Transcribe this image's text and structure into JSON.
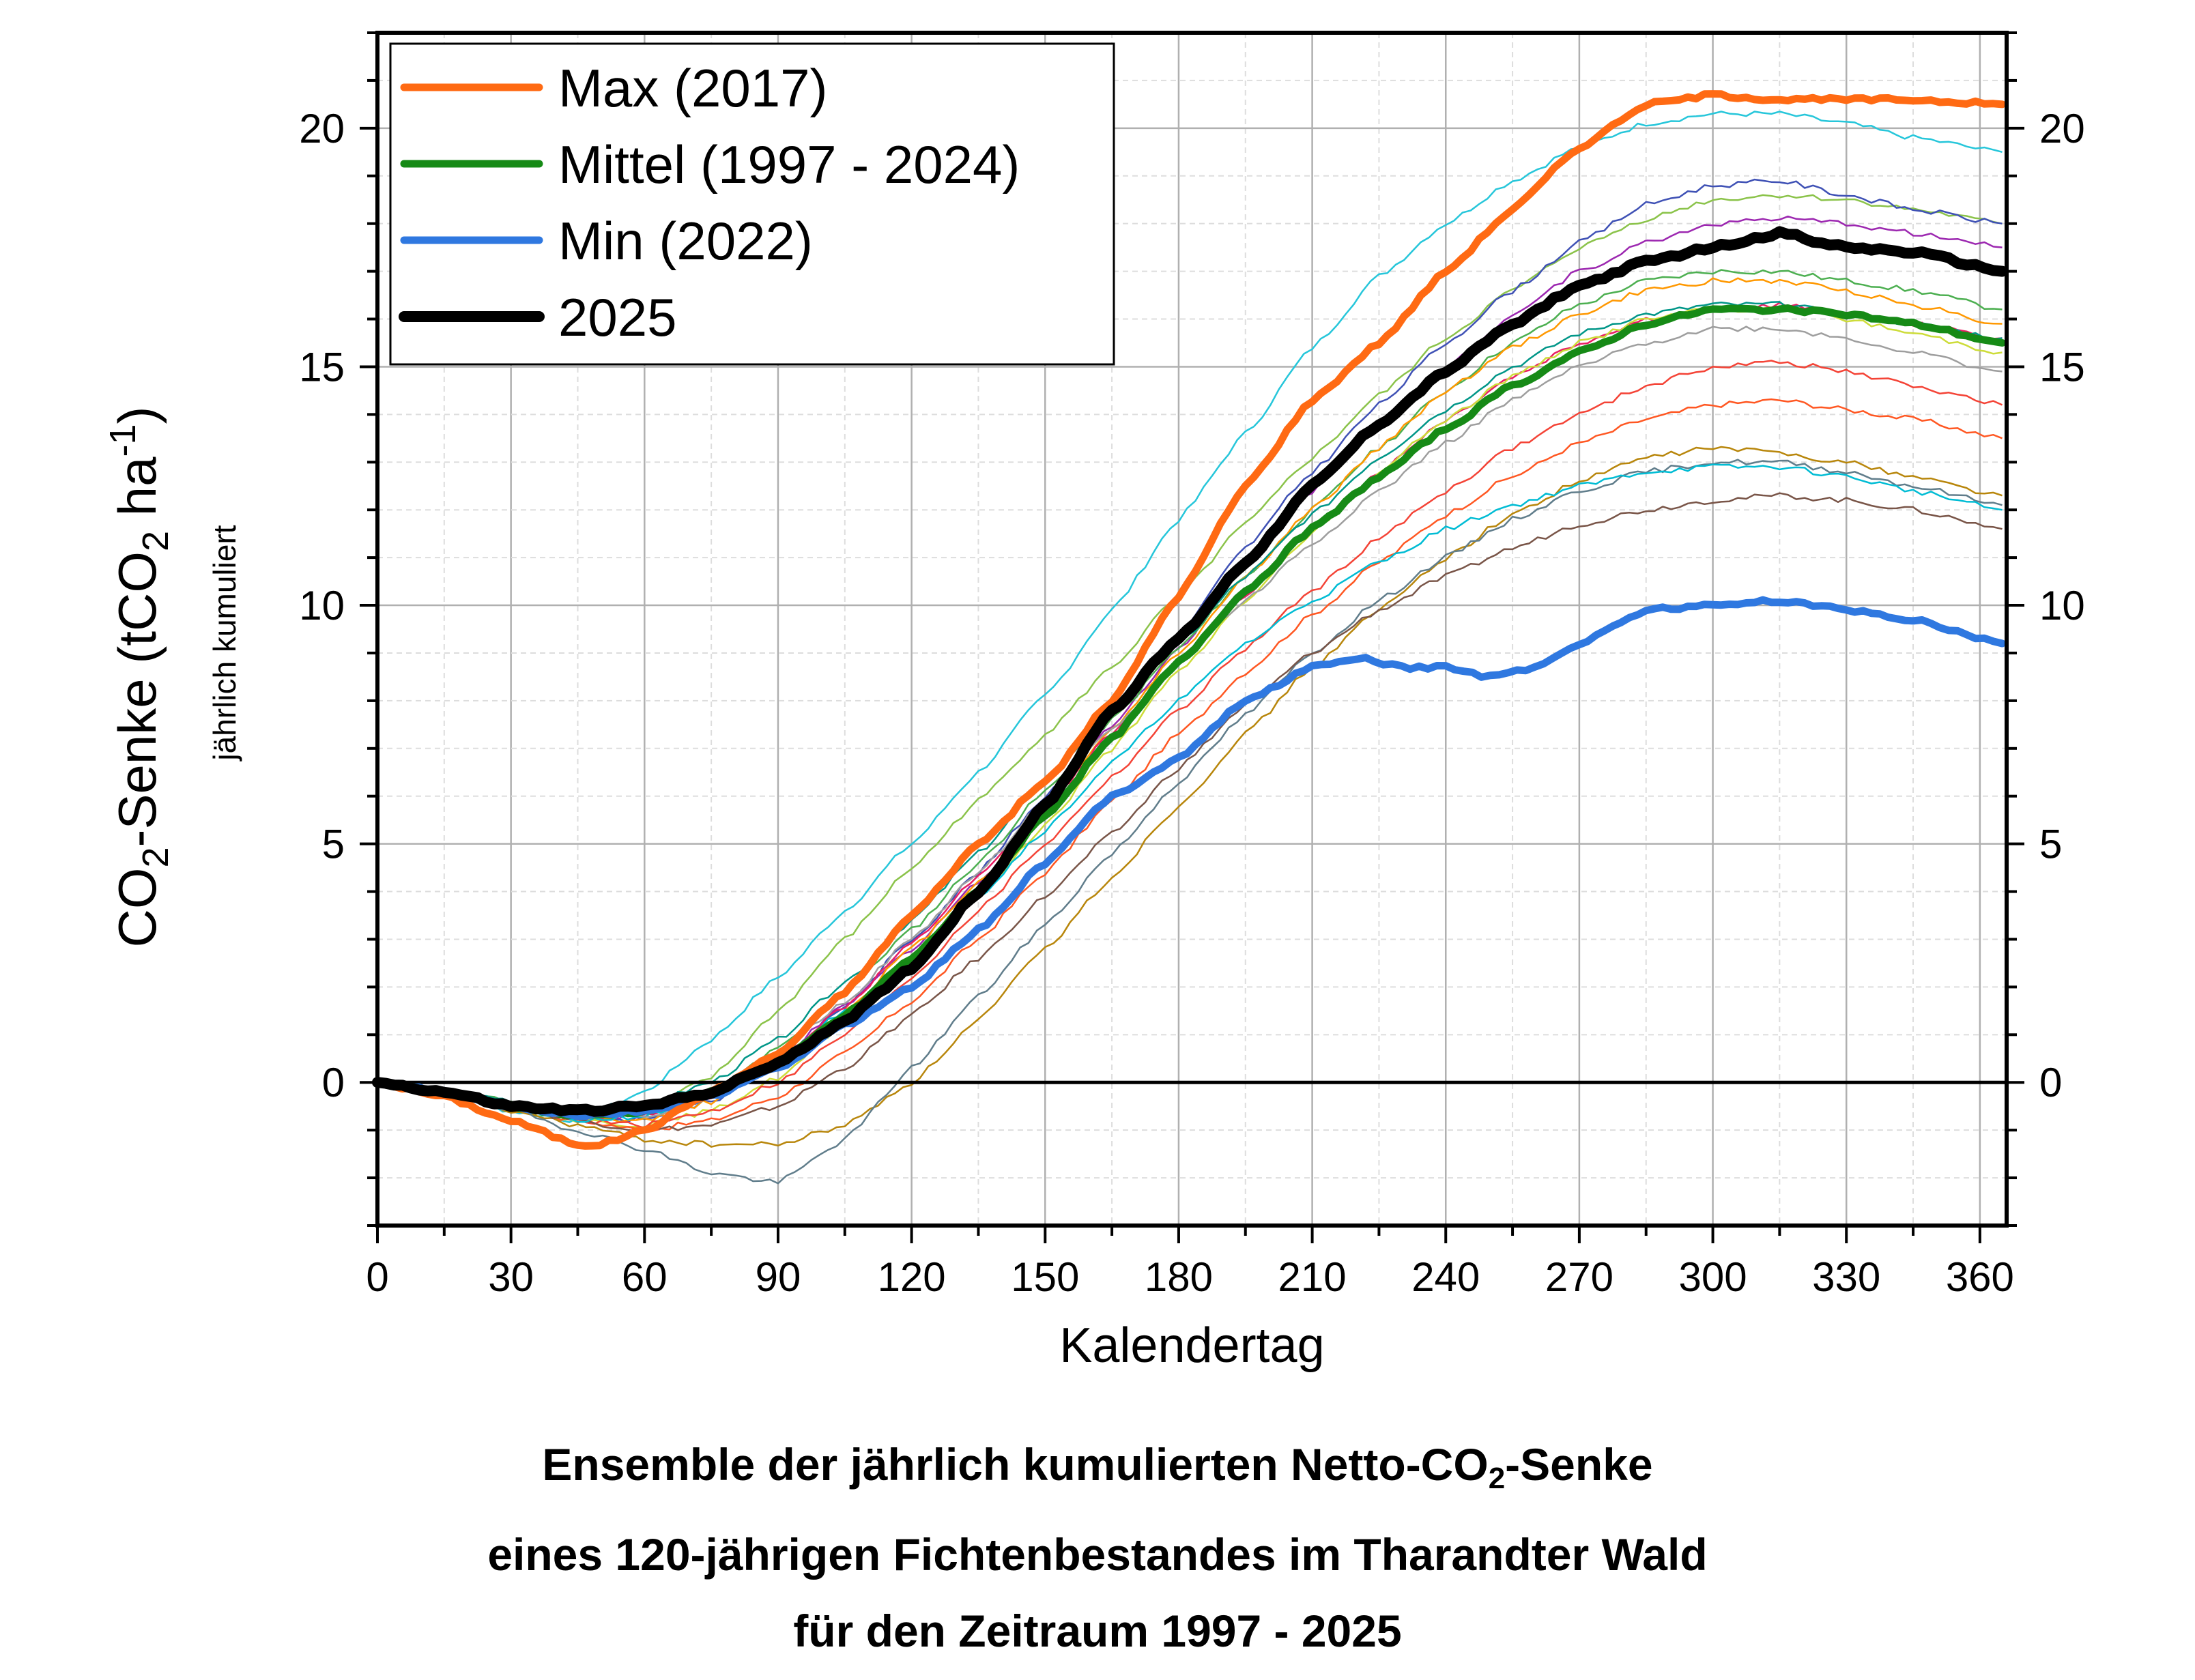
{
  "chart_data": {
    "type": "line",
    "title": "Ensemble der jährlich kumulierten Netto-CO2-Senke eines 120-jährigen Fichtenbestandes im Tharandter Wald für den Zeitraum 1997 - 2025",
    "caption_lines": [
      {
        "pre": "Ensemble der jährlich kumulierten Netto-CO",
        "sub": "2",
        "post": "-Senke"
      },
      {
        "pre": "eines 120-jährigen Fichtenbestandes im Tharandter Wald",
        "sub": "",
        "post": ""
      },
      {
        "pre": "für den Zeitraum 1997 - 2025",
        "sub": "",
        "post": ""
      }
    ],
    "xlabel": "Kalendertag",
    "ylabel": {
      "pre": "CO",
      "sub1": "2",
      "mid": "-Senke (tCO",
      "sub2": "2",
      "mid2": " ha",
      "sup": "-1",
      "post": ")"
    },
    "ylabel_secondary": "jährlich kumuliert",
    "xlim": [
      0,
      366
    ],
    "ylim": [
      -3,
      22
    ],
    "x_ticks": [
      0,
      30,
      60,
      90,
      120,
      150,
      180,
      210,
      240,
      270,
      300,
      330,
      360
    ],
    "y_ticks": [
      0,
      5,
      10,
      15,
      20
    ],
    "grid": true,
    "legend_position": "top-left",
    "series": [
      {
        "name": "Max (2017)",
        "color": "#ff6a13",
        "width": "thick",
        "x": [
          0,
          15,
          30,
          45,
          50,
          60,
          75,
          90,
          105,
          120,
          135,
          150,
          165,
          180,
          195,
          210,
          225,
          240,
          255,
          270,
          285,
          300,
          315,
          330,
          345,
          365
        ],
        "y": [
          0,
          -0.3,
          -0.8,
          -1.3,
          -1.3,
          -1.0,
          -0.2,
          0.6,
          1.9,
          3.5,
          5.0,
          6.3,
          8.0,
          10.2,
          12.5,
          14.3,
          15.5,
          17.0,
          18.3,
          19.6,
          20.5,
          20.7,
          20.6,
          20.6,
          20.6,
          20.5
        ]
      },
      {
        "name": "Mittel (1997 - 2024)",
        "color": "#168a16",
        "width": "thick",
        "x": [
          0,
          15,
          30,
          45,
          60,
          75,
          90,
          105,
          120,
          135,
          150,
          165,
          180,
          195,
          210,
          225,
          240,
          255,
          270,
          285,
          300,
          315,
          330,
          345,
          365
        ],
        "y": [
          0,
          -0.2,
          -0.5,
          -0.7,
          -0.6,
          -0.2,
          0.4,
          1.4,
          2.6,
          4.0,
          5.6,
          7.2,
          8.8,
          10.3,
          11.6,
          12.7,
          13.7,
          14.6,
          15.3,
          15.9,
          16.2,
          16.2,
          16.1,
          15.9,
          15.5
        ]
      },
      {
        "name": "Min (2022)",
        "color": "#2f78e0",
        "width": "thick",
        "x": [
          0,
          15,
          30,
          45,
          60,
          75,
          90,
          105,
          120,
          135,
          150,
          165,
          180,
          195,
          210,
          220,
          230,
          240,
          250,
          260,
          270,
          285,
          300,
          315,
          330,
          345,
          365
        ],
        "y": [
          0,
          -0.2,
          -0.5,
          -0.7,
          -0.6,
          -0.3,
          0.3,
          1.2,
          2.0,
          3.2,
          4.6,
          6.0,
          6.8,
          8.0,
          8.7,
          8.9,
          8.7,
          8.7,
          8.5,
          8.7,
          9.2,
          9.9,
          10.0,
          10.1,
          9.9,
          9.7,
          9.2
        ]
      },
      {
        "name": "2025",
        "color": "#000000",
        "width": "thickest",
        "x": [
          0,
          15,
          30,
          45,
          60,
          75,
          90,
          105,
          120,
          135,
          150,
          165,
          180,
          195,
          210,
          225,
          240,
          255,
          270,
          285,
          300,
          315,
          330,
          345,
          365
        ],
        "y": [
          0,
          -0.2,
          -0.5,
          -0.6,
          -0.5,
          -0.2,
          0.4,
          1.3,
          2.4,
          4.0,
          5.8,
          7.8,
          9.3,
          10.9,
          12.5,
          13.8,
          14.9,
          15.9,
          16.7,
          17.2,
          17.5,
          17.8,
          17.5,
          17.4,
          17.0
        ]
      }
    ],
    "ensemble_years": [
      {
        "color": "#26c6da",
        "y": [
          0,
          -0.2,
          -0.6,
          -0.8,
          -0.2,
          0.9,
          2.2,
          3.6,
          5.0,
          6.5,
          8.1,
          9.9,
          11.8,
          13.6,
          15.4,
          16.9,
          18.0,
          18.9,
          19.6,
          20.1,
          20.3,
          20.3,
          20.1,
          19.8,
          19.5
        ]
      },
      {
        "color": "#8bc34a",
        "y": [
          0,
          -0.2,
          -0.5,
          -0.7,
          -0.6,
          0.1,
          1.5,
          3.0,
          4.5,
          5.9,
          7.3,
          8.7,
          10.2,
          11.7,
          13.1,
          14.4,
          15.6,
          16.6,
          17.5,
          18.1,
          18.5,
          18.6,
          18.5,
          18.3,
          18.0
        ]
      },
      {
        "color": "#3f51b5",
        "y": [
          0,
          -0.2,
          -0.5,
          -0.7,
          -0.8,
          -0.4,
          0.4,
          1.6,
          3.0,
          4.4,
          6.0,
          7.7,
          9.4,
          11.2,
          12.8,
          14.2,
          15.5,
          16.6,
          17.6,
          18.4,
          18.8,
          18.9,
          18.6,
          18.3,
          18.0
        ]
      },
      {
        "color": "#9c27b0",
        "y": [
          0,
          -0.2,
          -0.5,
          -0.7,
          -0.7,
          -0.3,
          0.5,
          1.6,
          2.8,
          4.2,
          5.8,
          7.5,
          9.1,
          10.8,
          12.4,
          13.8,
          15.0,
          16.1,
          17.0,
          17.6,
          18.0,
          18.1,
          18.0,
          17.8,
          17.5
        ]
      },
      {
        "color": "#4caf50",
        "y": [
          0,
          -0.2,
          -0.4,
          -0.6,
          -0.6,
          -0.2,
          0.7,
          1.9,
          3.2,
          4.6,
          6.1,
          7.6,
          9.1,
          10.6,
          12.0,
          13.3,
          14.5,
          15.5,
          16.3,
          16.8,
          17.0,
          17.0,
          16.8,
          16.6,
          16.2
        ]
      },
      {
        "color": "#ff9800",
        "y": [
          0,
          -0.2,
          -0.5,
          -0.8,
          -0.8,
          -0.4,
          0.4,
          1.5,
          2.8,
          4.2,
          5.8,
          7.4,
          9.0,
          10.6,
          12.0,
          13.3,
          14.5,
          15.4,
          16.1,
          16.6,
          16.8,
          16.8,
          16.6,
          16.3,
          15.9
        ]
      },
      {
        "color": "#e91e63",
        "y": [
          0,
          -0.2,
          -0.5,
          -0.7,
          -0.7,
          -0.3,
          0.5,
          1.6,
          2.9,
          4.3,
          5.8,
          7.3,
          8.8,
          10.2,
          11.6,
          12.8,
          13.9,
          14.8,
          15.5,
          16.0,
          16.2,
          16.3,
          16.1,
          15.9,
          15.6
        ]
      },
      {
        "color": "#009688",
        "y": [
          0,
          -0.2,
          -0.4,
          -0.6,
          -0.5,
          0.0,
          0.9,
          2.1,
          3.4,
          4.8,
          6.3,
          7.8,
          9.2,
          10.6,
          11.9,
          13.1,
          14.1,
          15.0,
          15.7,
          16.1,
          16.3,
          16.3,
          16.1,
          15.9,
          15.6
        ]
      },
      {
        "color": "#cddc39",
        "y": [
          0,
          -0.2,
          -0.5,
          -0.8,
          -0.9,
          -0.6,
          0.1,
          1.2,
          2.5,
          3.9,
          5.4,
          7.0,
          8.6,
          10.1,
          11.5,
          12.8,
          13.9,
          14.8,
          15.5,
          16.0,
          16.2,
          16.2,
          16.0,
          15.7,
          15.3
        ]
      },
      {
        "color": "#f44336",
        "y": [
          0,
          -0.2,
          -0.5,
          -0.8,
          -0.9,
          -0.6,
          0.0,
          1.0,
          2.2,
          3.6,
          5.0,
          6.4,
          7.8,
          9.1,
          10.3,
          11.4,
          12.4,
          13.3,
          14.0,
          14.6,
          15.0,
          15.1,
          14.9,
          14.6,
          14.2
        ]
      },
      {
        "color": "#ff5722",
        "y": [
          0,
          -0.2,
          -0.5,
          -0.8,
          -1.0,
          -0.8,
          -0.3,
          0.6,
          1.7,
          3.0,
          4.4,
          5.9,
          7.3,
          8.6,
          9.8,
          10.9,
          11.9,
          12.7,
          13.4,
          13.9,
          14.2,
          14.3,
          14.1,
          13.9,
          13.5
        ]
      },
      {
        "color": "#b8860b",
        "y": [
          0,
          -0.2,
          -0.6,
          -0.9,
          -1.2,
          -1.3,
          -1.3,
          -0.9,
          0.0,
          1.3,
          2.8,
          4.3,
          5.8,
          7.3,
          8.7,
          9.9,
          11.0,
          11.9,
          12.6,
          13.1,
          13.3,
          13.2,
          13.0,
          12.7,
          12.3
        ]
      },
      {
        "color": "#607d8b",
        "y": [
          0,
          -0.2,
          -0.6,
          -1.0,
          -1.4,
          -1.9,
          -2.1,
          -1.2,
          0.3,
          1.8,
          3.3,
          4.8,
          6.3,
          7.7,
          9.0,
          10.1,
          11.0,
          11.8,
          12.4,
          12.8,
          13.0,
          13.0,
          12.8,
          12.5,
          12.1
        ]
      },
      {
        "color": "#795548",
        "y": [
          0,
          -0.2,
          -0.5,
          -0.8,
          -1.0,
          -0.9,
          -0.5,
          0.3,
          1.4,
          2.6,
          3.9,
          5.2,
          6.6,
          7.9,
          9.0,
          9.9,
          10.6,
          11.2,
          11.7,
          12.0,
          12.2,
          12.3,
          12.2,
          12.0,
          11.6
        ]
      },
      {
        "color": "#00bcd4",
        "y": [
          0,
          -0.2,
          -0.5,
          -0.8,
          -0.7,
          -0.3,
          0.5,
          1.5,
          2.6,
          3.9,
          5.3,
          6.7,
          8.0,
          9.2,
          10.1,
          10.9,
          11.6,
          12.1,
          12.5,
          12.8,
          12.9,
          12.9,
          12.7,
          12.4,
          12.0
        ]
      },
      {
        "color": "#9e9e9e",
        "y": [
          0,
          -0.2,
          -0.5,
          -0.7,
          -0.7,
          -0.3,
          0.6,
          1.7,
          3.0,
          4.4,
          5.9,
          7.4,
          8.8,
          10.1,
          11.3,
          12.4,
          13.4,
          14.3,
          15.0,
          15.5,
          15.8,
          15.8,
          15.6,
          15.3,
          14.9
        ]
      }
    ],
    "ensemble_x": [
      0,
      15,
      30,
      45,
      60,
      75,
      90,
      105,
      120,
      135,
      150,
      165,
      180,
      195,
      210,
      225,
      240,
      255,
      270,
      285,
      300,
      315,
      330,
      345,
      365
    ]
  }
}
